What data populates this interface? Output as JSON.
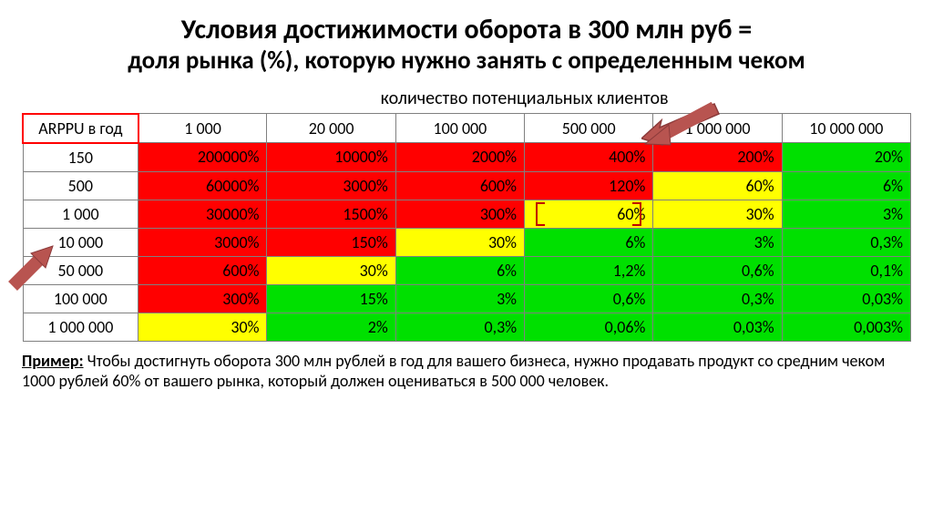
{
  "title_line1": "Условия достижимости оборота в 300 млн руб =",
  "title_line2": "доля рынка (%), которую нужно занять с определенным чеком",
  "superheader": "количество потенциальных клиентов",
  "corner_label": "ARPPU в год",
  "columns": [
    "1 000",
    "20 000",
    "100 000",
    "500 000",
    "1 000 000",
    "10 000 000"
  ],
  "row_labels": [
    "150",
    "500",
    "1 000",
    "10 000",
    "50 000",
    "100 000",
    "1 000 000"
  ],
  "cells": [
    [
      {
        "v": "200000%",
        "c": "red"
      },
      {
        "v": "10000%",
        "c": "red"
      },
      {
        "v": "2000%",
        "c": "red"
      },
      {
        "v": "400%",
        "c": "red"
      },
      {
        "v": "200%",
        "c": "red"
      },
      {
        "v": "20%",
        "c": "green"
      }
    ],
    [
      {
        "v": "60000%",
        "c": "red"
      },
      {
        "v": "3000%",
        "c": "red"
      },
      {
        "v": "600%",
        "c": "red"
      },
      {
        "v": "120%",
        "c": "red"
      },
      {
        "v": "60%",
        "c": "yellow"
      },
      {
        "v": "6%",
        "c": "green"
      }
    ],
    [
      {
        "v": "30000%",
        "c": "red"
      },
      {
        "v": "1500%",
        "c": "red"
      },
      {
        "v": "300%",
        "c": "red"
      },
      {
        "v": "60%",
        "c": "yellow",
        "br": true
      },
      {
        "v": "30%",
        "c": "yellow"
      },
      {
        "v": "3%",
        "c": "green"
      }
    ],
    [
      {
        "v": "3000%",
        "c": "red"
      },
      {
        "v": "150%",
        "c": "red"
      },
      {
        "v": "30%",
        "c": "yellow"
      },
      {
        "v": "6%",
        "c": "green"
      },
      {
        "v": "3%",
        "c": "green"
      },
      {
        "v": "0,3%",
        "c": "green"
      }
    ],
    [
      {
        "v": "600%",
        "c": "red"
      },
      {
        "v": "30%",
        "c": "yellow"
      },
      {
        "v": "6%",
        "c": "green"
      },
      {
        "v": "1,2%",
        "c": "green"
      },
      {
        "v": "0,6%",
        "c": "green"
      },
      {
        "v": "0,1%",
        "c": "green"
      }
    ],
    [
      {
        "v": "300%",
        "c": "red"
      },
      {
        "v": "15%",
        "c": "green"
      },
      {
        "v": "3%",
        "c": "green"
      },
      {
        "v": "0,6%",
        "c": "green"
      },
      {
        "v": "0,3%",
        "c": "green"
      },
      {
        "v": "0,03%",
        "c": "green"
      }
    ],
    [
      {
        "v": "30%",
        "c": "yellow"
      },
      {
        "v": "2%",
        "c": "green"
      },
      {
        "v": "0,3%",
        "c": "green"
      },
      {
        "v": "0,06%",
        "c": "green"
      },
      {
        "v": "0,03%",
        "c": "green"
      },
      {
        "v": "0,003%",
        "c": "green"
      }
    ]
  ],
  "arrow_color": "#c05050",
  "arrow_stroke": "#8b3a3a",
  "footnote_lead": "Пример:",
  "footnote_body": " Чтобы достигнуть оборота 300 млн рублей в год для вашего бизнеса, нужно продавать продукт со средним чеком 1000 рублей 60% от вашего рынка, который должен оцениваться в 500 000 человек."
}
